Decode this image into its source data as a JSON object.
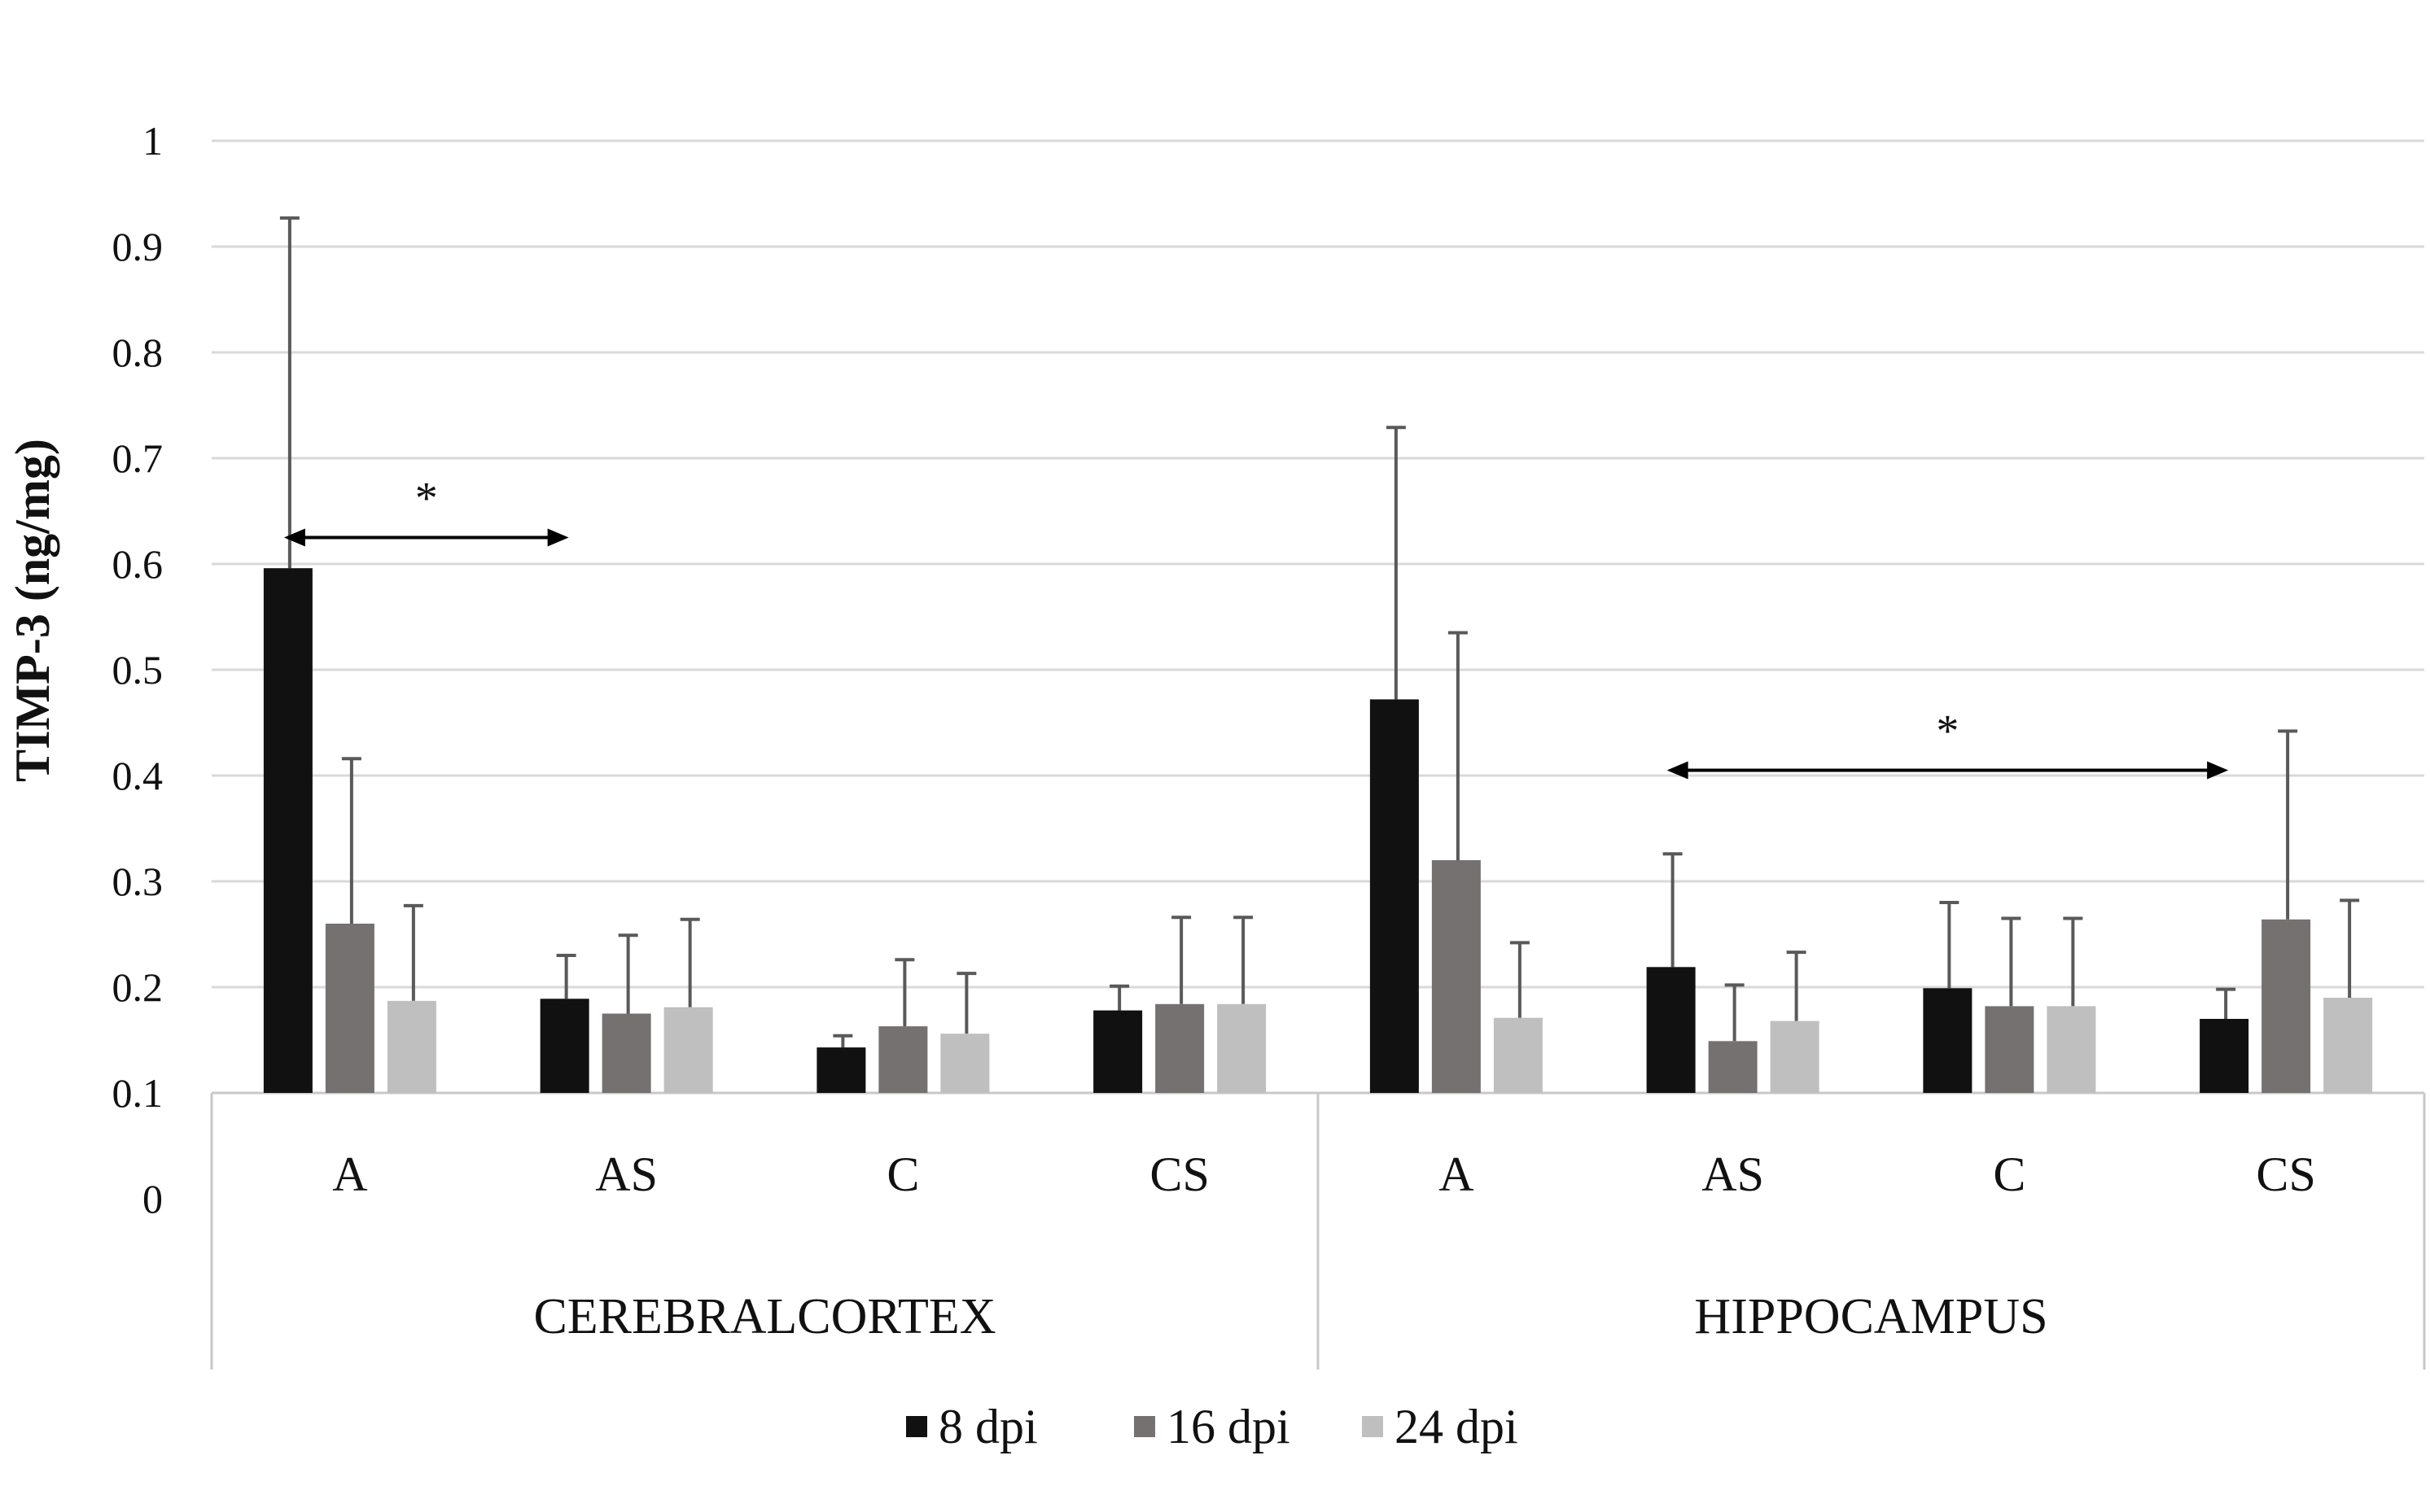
{
  "chart_data": {
    "type": "bar",
    "title": "",
    "ylabel": "TIMP-3 (ng/mg)",
    "xlabel": "",
    "ylim": [
      0,
      1
    ],
    "yticks": [
      "0",
      "0.1",
      "0.2",
      "0.3",
      "0.4",
      "0.5",
      "0.6",
      "0.7",
      "0.8",
      "0.9",
      "1"
    ],
    "grid": true,
    "groups": [
      {
        "name": "CEREBRALCORTEX",
        "categories": [
          "A",
          "AS",
          "C",
          "CS"
        ]
      },
      {
        "name": "HIPPOCAMPUS",
        "categories": [
          "A",
          "AS",
          "C",
          "CS"
        ]
      }
    ],
    "series": [
      {
        "name": "8 dpi",
        "color": "#111111",
        "values": [
          0.596,
          0.189,
          0.143,
          0.178,
          0.472,
          0.219,
          0.199,
          0.17
        ],
        "errors": [
          0.331,
          0.041,
          0.011,
          0.023,
          0.257,
          0.107,
          0.081,
          0.028
        ]
      },
      {
        "name": "16 dpi",
        "color": "#767171",
        "values": [
          0.26,
          0.175,
          0.163,
          0.184,
          0.32,
          0.149,
          0.182,
          0.264
        ],
        "errors": [
          0.156,
          0.074,
          0.063,
          0.082,
          0.215,
          0.053,
          0.083,
          0.178
        ]
      },
      {
        "name": "24 dpi",
        "color": "#bfbfbf",
        "values": [
          0.187,
          0.181,
          0.156,
          0.184,
          0.171,
          0.168,
          0.182,
          0.19
        ],
        "errors": [
          0.09,
          0.083,
          0.057,
          0.082,
          0.071,
          0.065,
          0.083,
          0.092
        ]
      }
    ],
    "significance": [
      {
        "label": "*",
        "group": 0,
        "from_category": 0,
        "to_category": 1,
        "y": 0.625
      },
      {
        "label": "*",
        "group": 1,
        "from_category": 1,
        "to_category": 3,
        "y": 0.405
      }
    ],
    "legend": {
      "position": "bottom",
      "entries": [
        "8 dpi",
        "16 dpi",
        "24 dpi"
      ]
    }
  }
}
